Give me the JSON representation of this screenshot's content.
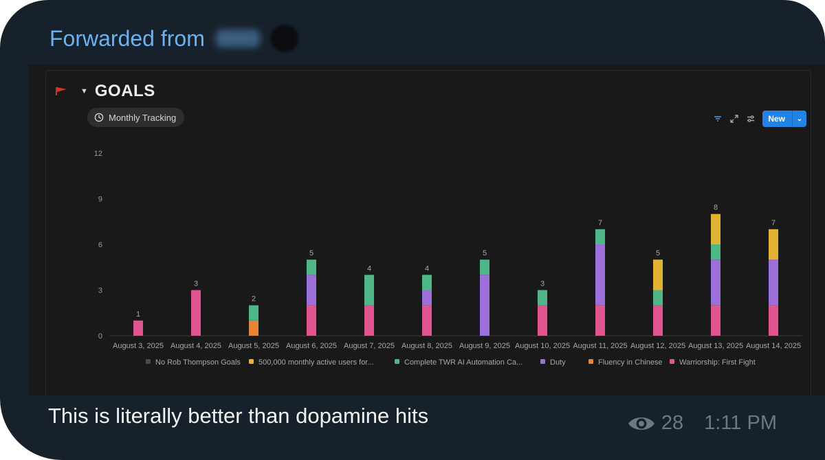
{
  "message": {
    "forwarded_label": "Forwarded from",
    "caption": "This is literally better than dopamine hits",
    "views": "28",
    "time": "1:11 PM"
  },
  "notion": {
    "title": "GOALS",
    "view_tab": "Monthly Tracking",
    "new_button": "New",
    "icons": [
      "red-flag-icon",
      "caret-down-icon",
      "clock-icon",
      "filter-icon",
      "expand-icon",
      "settings-sliders-icon",
      "chevron-down-icon",
      "eye-icon"
    ]
  },
  "chart_data": {
    "type": "bar",
    "stacked": true,
    "categories": [
      "August 3, 2025",
      "August 4, 2025",
      "August 5, 2025",
      "August 6, 2025",
      "August 7, 2025",
      "August 8, 2025",
      "August 9, 2025",
      "August 10, 2025",
      "August 11, 2025",
      "August 12, 2025",
      "August 13, 2025",
      "August 14, 2025"
    ],
    "ylim": [
      0,
      12
    ],
    "yticks": [
      0,
      3,
      6,
      9,
      12
    ],
    "totals": [
      1,
      3,
      2,
      5,
      4,
      4,
      5,
      3,
      7,
      5,
      8,
      7
    ],
    "legend_position": "bottom",
    "series": [
      {
        "name": "No Rob Thompson Goals",
        "color": "#4a4a4a",
        "values": [
          0,
          0,
          0,
          0,
          0,
          0,
          0,
          0,
          0,
          0,
          0,
          0
        ]
      },
      {
        "name": "Warriorship: First Fight",
        "color": "#e0548f",
        "values": [
          1,
          3,
          0,
          2,
          2,
          2,
          0,
          2,
          2,
          2,
          2,
          2
        ]
      },
      {
        "name": "Fluency in Chinese",
        "color": "#e8833a",
        "values": [
          0,
          0,
          1,
          0,
          0,
          0,
          0,
          0,
          0,
          0,
          0,
          0
        ]
      },
      {
        "name": "Duty",
        "color": "#9d6fd8",
        "values": [
          0,
          0,
          0,
          2,
          0,
          1,
          4,
          0,
          4,
          0,
          3,
          3
        ]
      },
      {
        "name": "Complete TWR AI Automation Ca...",
        "color": "#4fb787",
        "values": [
          0,
          0,
          1,
          1,
          2,
          1,
          1,
          1,
          1,
          1,
          1,
          0
        ]
      },
      {
        "name": "500,000 monthly active users for...",
        "color": "#e3b232",
        "values": [
          0,
          0,
          0,
          0,
          0,
          0,
          0,
          0,
          0,
          2,
          2,
          2
        ]
      }
    ],
    "legend_order": [
      "No Rob Thompson Goals",
      "500,000 monthly active users for...",
      "Complete TWR AI Automation Ca...",
      "Duty",
      "Fluency in Chinese",
      "Warriorship: First Fight"
    ]
  }
}
